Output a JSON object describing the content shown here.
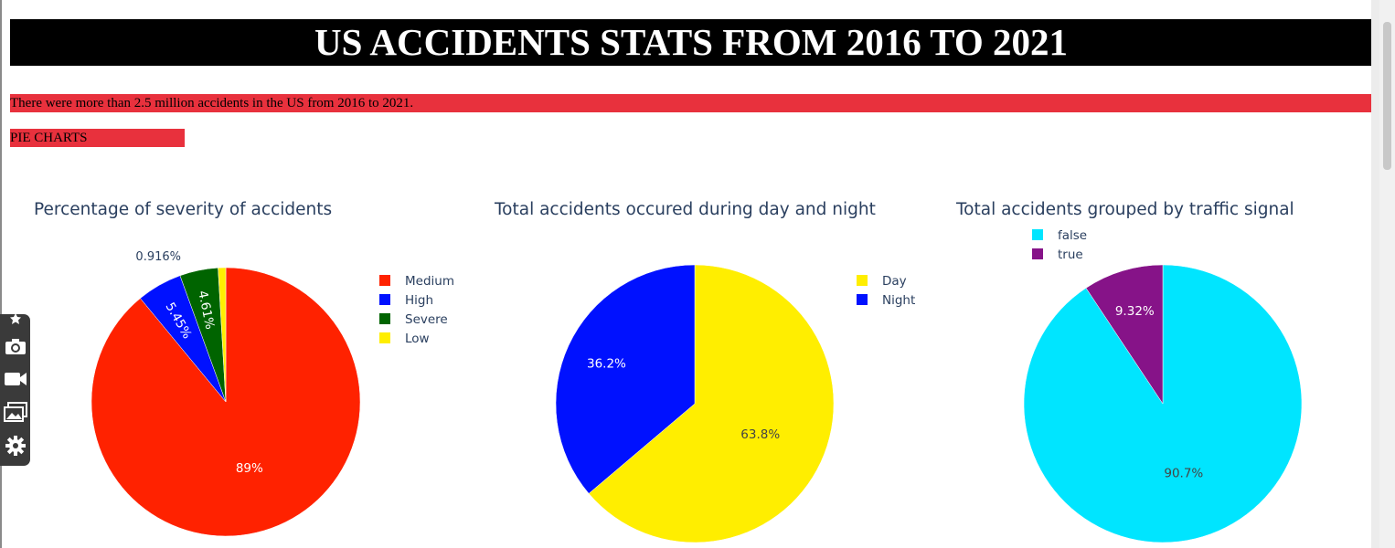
{
  "header": {
    "title": "US ACCIDENTS STATS FROM 2016 TO 2021",
    "summary": "There were more than 2.5 million accidents in the US from 2016 to 2021.",
    "section_label": "PIE CHARTS"
  },
  "toolbar": {
    "icons": [
      "pin-icon",
      "camera-icon",
      "video-icon",
      "gallery-icon",
      "settings-icon"
    ]
  },
  "chart_data": [
    {
      "type": "pie",
      "title": "Percentage of severity of accidents",
      "legend": "top-right",
      "slices": [
        {
          "label": "Medium",
          "value": 89.0,
          "text": "89%",
          "color": "#ff2200"
        },
        {
          "label": "High",
          "value": 5.45,
          "text": "5.45%",
          "color": "#0011ff"
        },
        {
          "label": "Severe",
          "value": 4.61,
          "text": "4.61%",
          "color": "#006400"
        },
        {
          "label": "Low",
          "value": 0.916,
          "text": "0.916%",
          "color": "#ffee00"
        }
      ]
    },
    {
      "type": "pie",
      "title": "Total accidents occured during day and night",
      "legend": "top-right",
      "slices": [
        {
          "label": "Day",
          "value": 63.8,
          "text": "63.8%",
          "color": "#ffee00"
        },
        {
          "label": "Night",
          "value": 36.2,
          "text": "36.2%",
          "color": "#0011ff"
        }
      ]
    },
    {
      "type": "pie",
      "title": "Total accidents grouped by traffic signal",
      "legend": "top-left",
      "slices": [
        {
          "label": "false",
          "value": 90.7,
          "text": "90.7%",
          "color": "#00e5ff"
        },
        {
          "label": "true",
          "value": 9.32,
          "text": "9.32%",
          "color": "#861388"
        }
      ]
    }
  ]
}
